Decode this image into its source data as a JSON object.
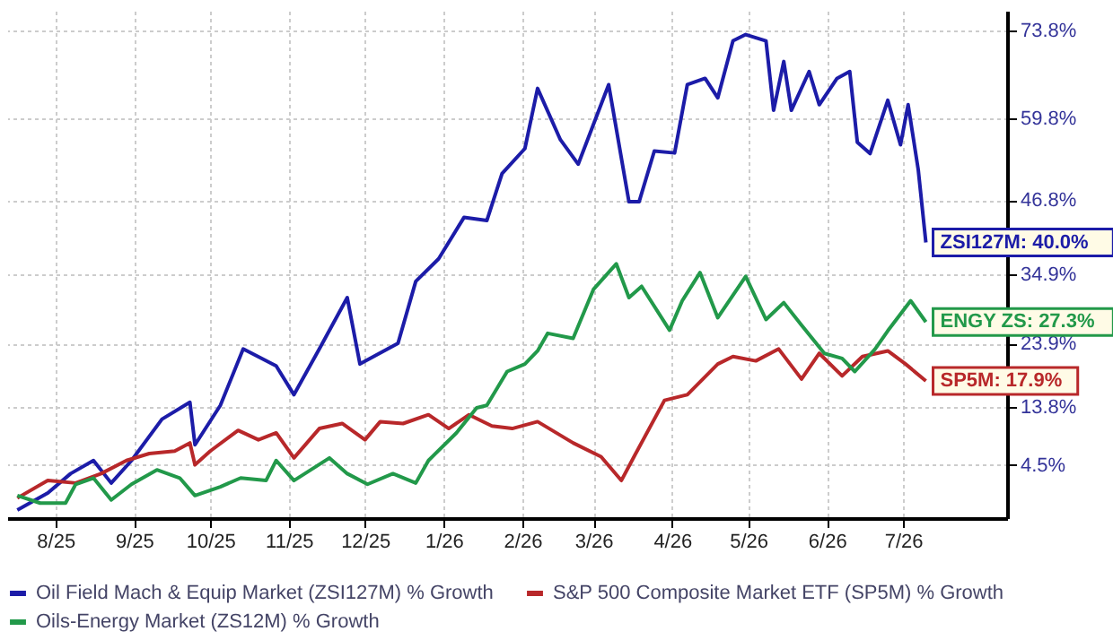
{
  "chart_data": {
    "type": "line",
    "xlim": [
      "2025-07-27",
      "2026-08-25"
    ],
    "ylim": [
      -4,
      77
    ],
    "xticks": [
      {
        "value": "2025-08-15",
        "label": "8/25"
      },
      {
        "value": "2025-09-15",
        "label": "9/25"
      },
      {
        "value": "2025-10-15",
        "label": "10/25"
      },
      {
        "value": "2025-11-15",
        "label": "11/25"
      },
      {
        "value": "2025-12-15",
        "label": "12/25"
      },
      {
        "value": "2026-01-15",
        "label": "1/26"
      },
      {
        "value": "2026-02-15",
        "label": "2/26"
      },
      {
        "value": "2026-03-15",
        "label": "3/26"
      },
      {
        "value": "2026-04-15",
        "label": "4/26"
      },
      {
        "value": "2026-05-15",
        "label": "5/26"
      },
      {
        "value": "2026-06-15",
        "label": "6/26"
      },
      {
        "value": "2026-07-15",
        "label": "7/26"
      }
    ],
    "yticks": [
      {
        "value": 4.5,
        "label": "4.5%"
      },
      {
        "value": 13.8,
        "label": "13.8%"
      },
      {
        "value": 23.9,
        "label": "23.9%"
      },
      {
        "value": 34.9,
        "label": "34.9%"
      },
      {
        "value": 46.8,
        "label": "46.8%"
      },
      {
        "value": 59.8,
        "label": "59.8%"
      },
      {
        "value": 73.8,
        "label": "73.8%"
      }
    ],
    "grid": true,
    "legend": "bottom",
    "marker": "none",
    "line_style": "solid",
    "series": [
      {
        "name": "Oil Field Mach & Equip Market (ZSI127M) % Growth",
        "color": "#1c1ca8",
        "x": [
          "2025-07-31",
          "2025-08-12",
          "2025-08-21",
          "2025-08-30",
          "2025-09-06",
          "2025-09-14",
          "2025-09-26",
          "2025-10-07",
          "2025-10-09",
          "2025-10-19",
          "2025-10-28",
          "2025-11-10",
          "2025-11-17",
          "2025-11-27",
          "2025-12-08",
          "2025-12-13",
          "2025-12-28",
          "2026-01-04",
          "2026-01-13",
          "2026-01-23",
          "2026-02-01",
          "2026-02-07",
          "2026-02-16",
          "2026-02-21",
          "2026-03-02",
          "2026-03-09",
          "2026-03-21",
          "2026-03-29",
          "2026-04-02",
          "2026-04-08",
          "2026-04-16",
          "2026-04-21",
          "2026-04-28",
          "2026-05-03",
          "2026-05-09",
          "2026-05-14",
          "2026-05-22",
          "2026-05-25",
          "2026-05-29",
          "2026-06-01",
          "2026-06-08",
          "2026-06-12",
          "2026-06-19",
          "2026-06-24",
          "2026-06-27",
          "2026-07-02",
          "2026-07-09",
          "2026-07-14",
          "2026-07-17",
          "2026-07-21",
          "2026-07-24"
        ],
        "values": [
          -2.7,
          0.0,
          3.1,
          5.2,
          1.6,
          5.2,
          11.8,
          14.5,
          7.7,
          14.0,
          23.0,
          20.3,
          15.7,
          23.0,
          31.2,
          20.6,
          23.9,
          33.8,
          37.4,
          44.0,
          43.5,
          51.0,
          55.0,
          64.6,
          56.4,
          52.5,
          65.2,
          46.5,
          46.5,
          54.6,
          54.3,
          65.2,
          66.2,
          63.1,
          72.2,
          73.2,
          72.2,
          61.1,
          68.9,
          61.1,
          67.3,
          62.0,
          66.2,
          67.3,
          56.0,
          54.2,
          62.7,
          55.6,
          62.0,
          51.6,
          40.0
        ]
      },
      {
        "name": "S&P 500 Composite Market ETF (SP5M) % Growth",
        "color": "#b8282a",
        "x": [
          "2025-07-31",
          "2025-08-12",
          "2025-08-23",
          "2025-09-02",
          "2025-09-12",
          "2025-09-21",
          "2025-10-01",
          "2025-10-07",
          "2025-10-09",
          "2025-10-15",
          "2025-10-26",
          "2025-11-03",
          "2025-11-10",
          "2025-11-17",
          "2025-11-27",
          "2025-12-06",
          "2025-12-15",
          "2025-12-21",
          "2025-12-30",
          "2026-01-09",
          "2026-01-17",
          "2026-01-25",
          "2026-02-03",
          "2026-02-11",
          "2026-02-21",
          "2026-03-07",
          "2026-03-18",
          "2026-03-26",
          "2026-03-31",
          "2026-04-12",
          "2026-04-21",
          "2026-05-03",
          "2026-05-09",
          "2026-05-18",
          "2026-05-27",
          "2026-06-05",
          "2026-06-12",
          "2026-06-21",
          "2026-06-29",
          "2026-07-09",
          "2026-07-16",
          "2026-07-24"
        ],
        "values": [
          -0.8,
          2.0,
          1.6,
          3.1,
          5.2,
          6.3,
          6.7,
          8.0,
          4.5,
          6.7,
          10.0,
          8.5,
          9.6,
          5.6,
          10.3,
          11.1,
          8.5,
          11.4,
          11.1,
          12.5,
          10.3,
          12.5,
          10.7,
          10.3,
          11.4,
          8.0,
          5.8,
          2.0,
          5.8,
          14.8,
          15.7,
          20.6,
          21.8,
          21.1,
          23.0,
          18.2,
          22.3,
          18.7,
          21.8,
          22.7,
          20.6,
          17.9
        ]
      },
      {
        "name": "Oils-Energy Market (ZS12M) % Growth",
        "color": "#22994a",
        "x": [
          "2025-07-31",
          "2025-08-09",
          "2025-08-19",
          "2025-08-23",
          "2025-08-30",
          "2025-09-06",
          "2025-09-14",
          "2025-09-24",
          "2025-10-03",
          "2025-10-09",
          "2025-10-19",
          "2025-10-27",
          "2025-11-06",
          "2025-11-10",
          "2025-11-17",
          "2025-12-01",
          "2025-12-08",
          "2025-12-16",
          "2025-12-26",
          "2026-01-04",
          "2026-01-09",
          "2026-01-20",
          "2026-01-28",
          "2026-02-01",
          "2026-02-09",
          "2026-02-16",
          "2026-02-21",
          "2026-02-25",
          "2026-03-07",
          "2026-03-15",
          "2026-03-24",
          "2026-03-29",
          "2026-04-03",
          "2026-04-14",
          "2026-04-19",
          "2026-04-26",
          "2026-05-03",
          "2026-05-14",
          "2026-05-22",
          "2026-05-29",
          "2026-06-05",
          "2026-06-14",
          "2026-06-21",
          "2026-06-26",
          "2026-07-04",
          "2026-07-09",
          "2026-07-18",
          "2026-07-24"
        ],
        "values": [
          -0.4,
          -1.6,
          -1.6,
          1.4,
          2.4,
          -1.1,
          1.4,
          3.7,
          2.4,
          -0.4,
          1.0,
          2.4,
          2.0,
          5.2,
          2.0,
          5.6,
          3.1,
          1.4,
          3.1,
          1.6,
          5.2,
          9.6,
          13.6,
          14.0,
          19.4,
          20.6,
          22.7,
          25.5,
          24.7,
          32.5,
          36.6,
          31.2,
          33.0,
          26.0,
          30.7,
          35.2,
          28.0,
          34.6,
          27.7,
          30.4,
          26.8,
          22.3,
          21.5,
          19.4,
          23.0,
          25.9,
          30.7,
          27.3
        ]
      }
    ],
    "annotations": [
      {
        "text": "ZSI127M: 40.0%",
        "x": "2026-07-24",
        "y": 40.0
      },
      {
        "text": "SP5M: 17.9%",
        "x": "2026-07-24",
        "y": 17.9
      },
      {
        "text": "ENGY ZS: 27.3%",
        "x": "2026-07-24",
        "y": 27.3
      }
    ]
  }
}
